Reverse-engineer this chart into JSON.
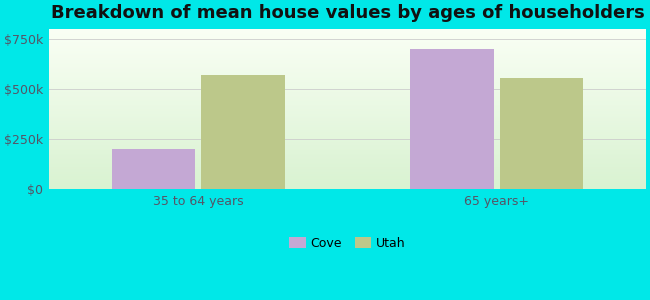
{
  "title": "Breakdown of mean house values by ages of householders",
  "categories": [
    "35 to 64 years",
    "65 years+"
  ],
  "series": {
    "Cove": [
      200000,
      700000
    ],
    "Utah": [
      572000,
      555000
    ]
  },
  "bar_colors": {
    "Cove": "#c4a8d4",
    "Utah": "#bcc88a"
  },
  "ylim": [
    0,
    800000
  ],
  "yticks": [
    0,
    250000,
    500000,
    750000
  ],
  "ytick_labels": [
    "$0",
    "$250k",
    "$500k",
    "$750k"
  ],
  "background_color": "#00e8e8",
  "title_fontsize": 13,
  "tick_fontsize": 9,
  "legend_fontsize": 9,
  "bar_width": 0.28,
  "legend_marker_size": 10
}
